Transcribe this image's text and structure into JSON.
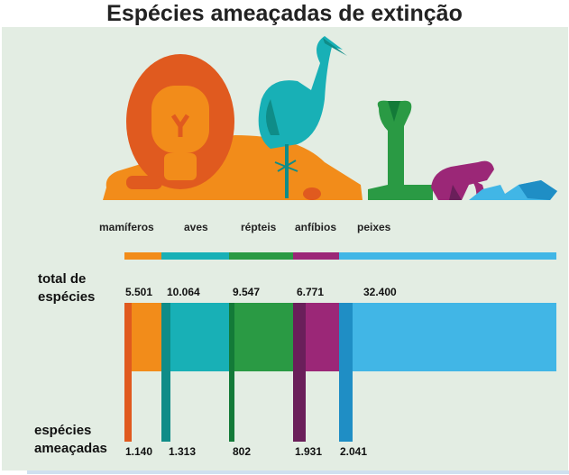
{
  "title": "Espécies ameaçadas de extinção",
  "labels": {
    "total": "total de espécies",
    "total_line1": "total de",
    "total_line2": "espécies",
    "threatened_line1": "espécies",
    "threatened_line2": "ameaçadas"
  },
  "colors": {
    "mamiferos": "#f28c1a",
    "mamiferos_dark": "#e05a1f",
    "aves": "#18b0b6",
    "aves_dark": "#0f8c88",
    "repteis": "#2a9a44",
    "repteis_dark": "#137a38",
    "anfibios": "#9b2777",
    "anfibios_dark": "#6a1f5a",
    "peixes": "#41b6e6",
    "peixes_dark": "#1f8ec5",
    "background": "#e3ede3"
  },
  "chart_data": {
    "type": "bar",
    "title": "Espécies ameaçadas de extinção",
    "categories": [
      "mamíferos",
      "aves",
      "répteis",
      "anfíbios",
      "peixes"
    ],
    "series": [
      {
        "name": "total de espécies",
        "values": [
          5501,
          10064,
          9547,
          6771,
          32400
        ],
        "labels": [
          "5.501",
          "10.064",
          "9.547",
          "6.771",
          "32.400"
        ]
      },
      {
        "name": "espécies ameaçadas",
        "values": [
          1140,
          1313,
          802,
          1931,
          2041
        ],
        "labels": [
          "1.140",
          "1.313",
          "802",
          "1.931",
          "2.041"
        ]
      }
    ]
  }
}
